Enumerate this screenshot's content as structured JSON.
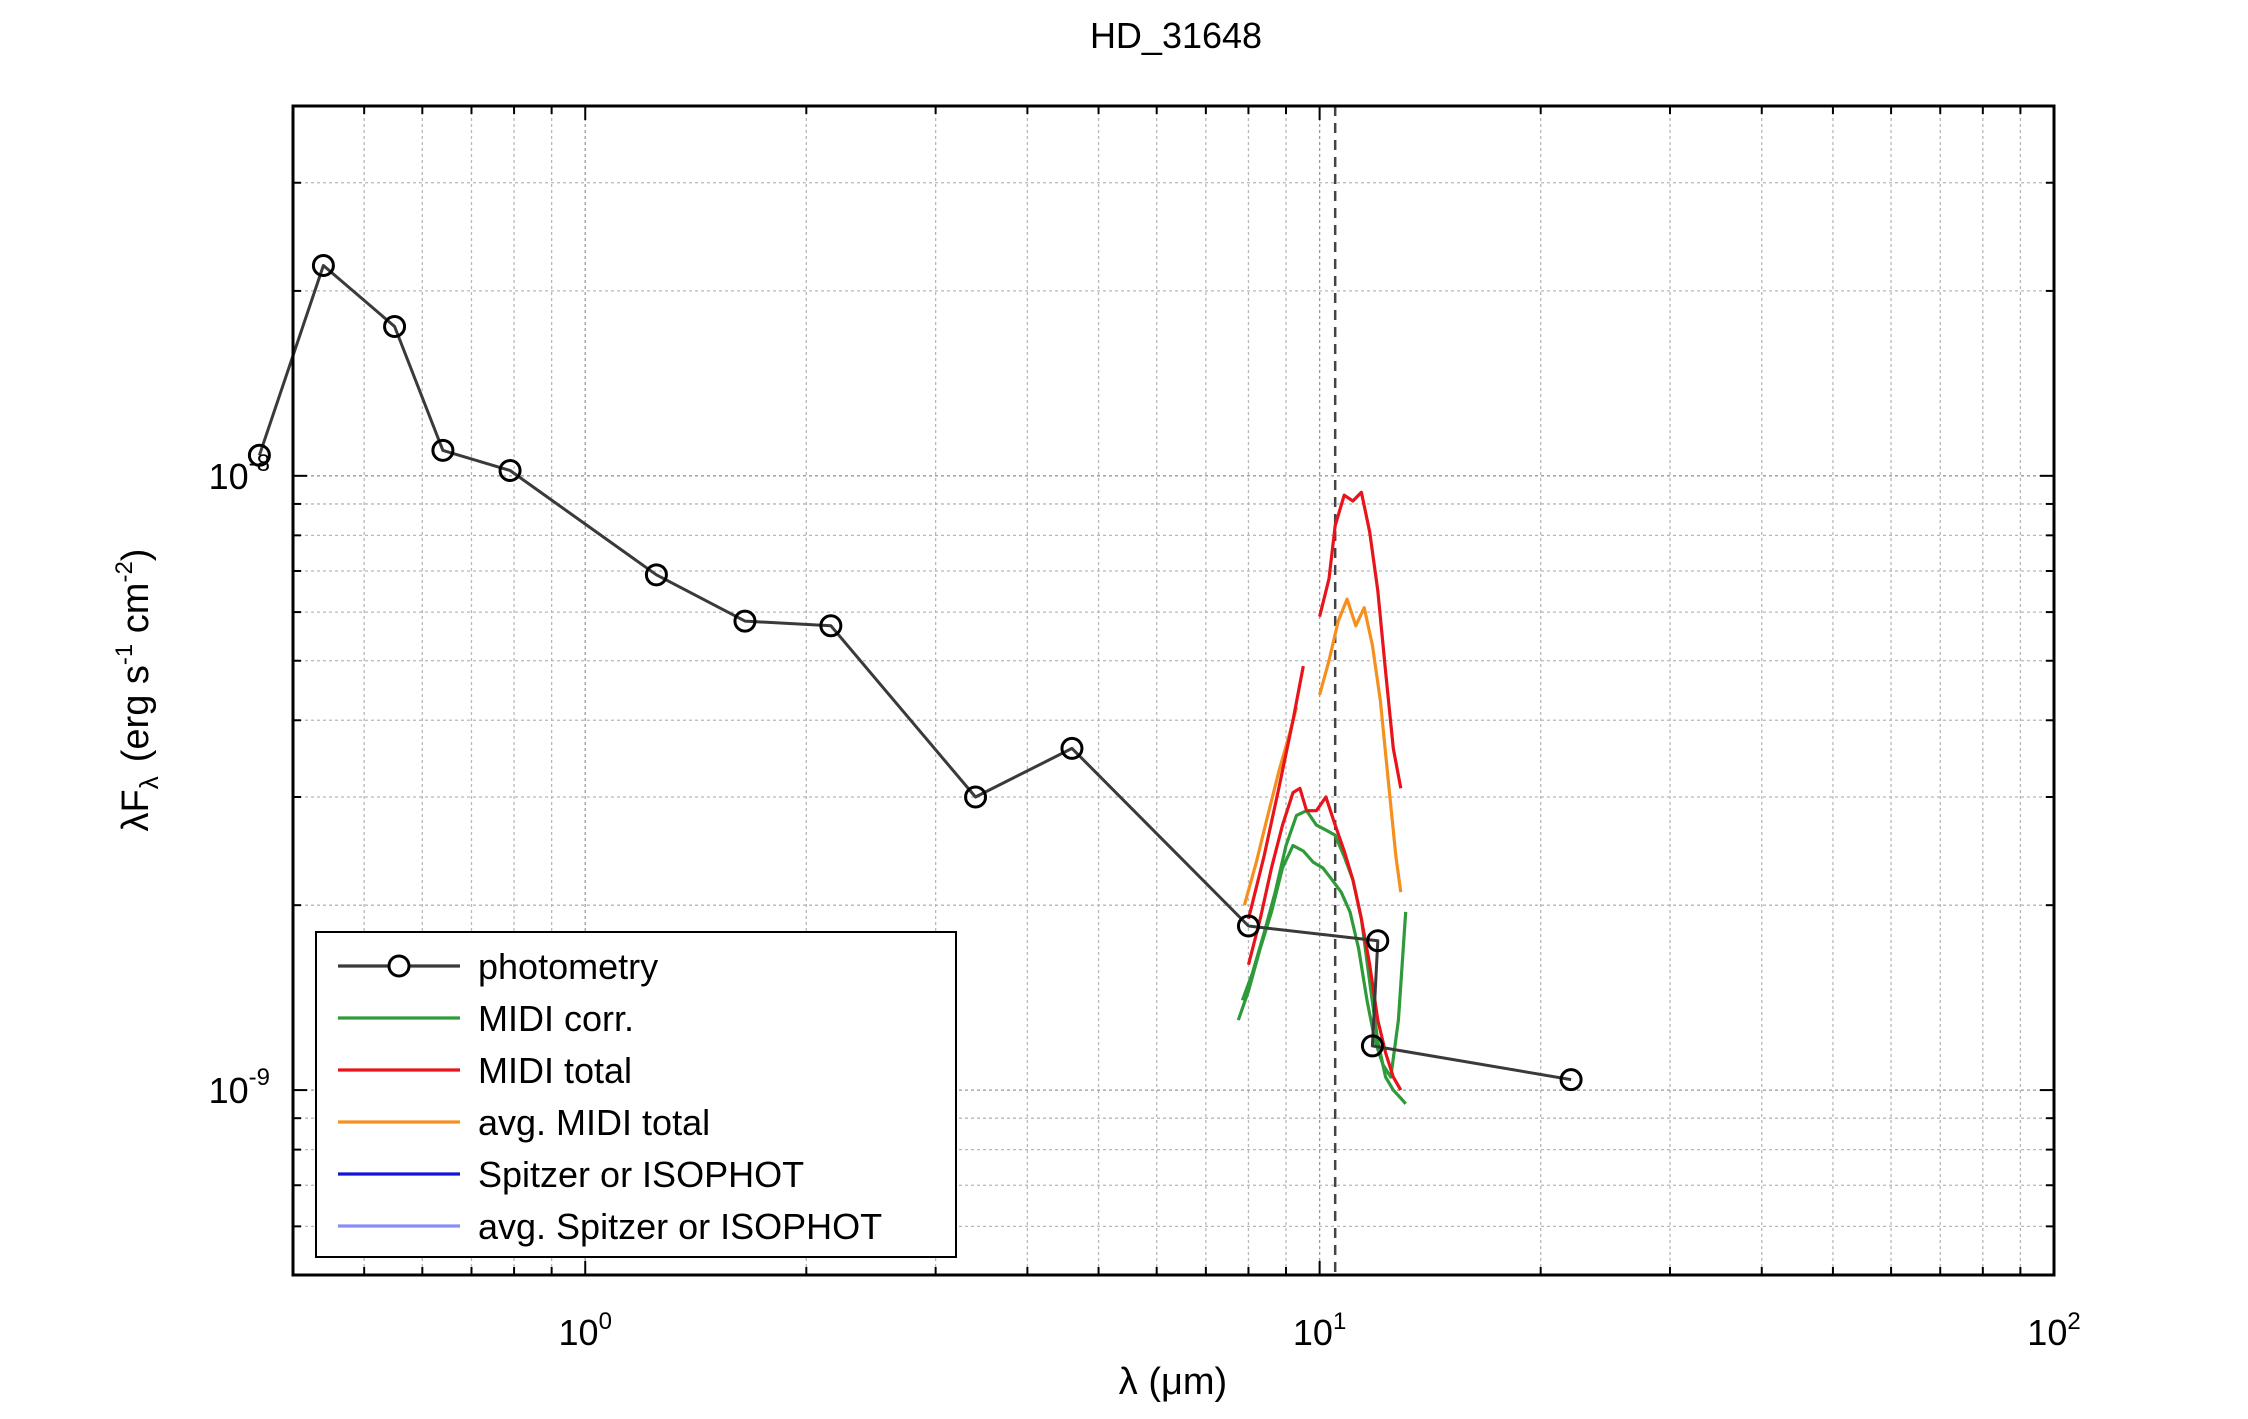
{
  "chart_data": {
    "type": "line",
    "title": "HD_31648",
    "xlabel": {
      "main": "λ (",
      "mu": "μ",
      "rest": "m)"
    },
    "ylabel": {
      "a": "λF",
      "sub": "λ",
      "b": "(erg s",
      "e1": "-1",
      "c": " cm",
      "e2": "-2",
      "d": ")"
    },
    "x_scale": "log",
    "y_scale": "log",
    "xlim": [
      0.4,
      100
    ],
    "ylim": [
      5e-10,
      4e-08
    ],
    "x_ticks": [
      {
        "base": "10",
        "exp": "0",
        "value": 1
      },
      {
        "base": "10",
        "exp": "1",
        "value": 10
      },
      {
        "base": "10",
        "exp": "2",
        "value": 100
      }
    ],
    "y_ticks": [
      {
        "base": "10",
        "exp": "-9",
        "value": 1e-09
      },
      {
        "base": "10",
        "exp": "-8",
        "value": 1e-08
      }
    ],
    "grid": true,
    "vline": {
      "x": 10.5,
      "style": "dashed"
    },
    "legend_position": "bottom-left",
    "colors": {
      "photometry": "#3a3a3a",
      "midi_corr": "#2e9a3a",
      "midi_total": "#e8141c",
      "avg_midi_total": "#f5901e",
      "spitzer": "#1414d8",
      "avg_spitzer": "#8c8cf5"
    },
    "series": [
      {
        "key": "photometry",
        "name": "photometry",
        "marker": "circle",
        "x": [
          0.36,
          0.44,
          0.55,
          0.64,
          0.79,
          1.25,
          1.65,
          2.16,
          3.4,
          4.6,
          8.0,
          12.0,
          11.8,
          22.0
        ],
        "y": [
          1.08e-08,
          2.2e-08,
          1.75e-08,
          1.1e-08,
          1.02e-08,
          6.9e-09,
          5.8e-09,
          5.7e-09,
          3e-09,
          3.6e-09,
          1.85e-09,
          1.75e-09,
          1.18e-09,
          1.04e-09
        ]
      },
      {
        "key": "midi_corr",
        "name": "MIDI corr.",
        "segments": [
          {
            "x": [
              7.85,
              8.1,
              8.4,
              8.7,
              9.0,
              9.3,
              9.6,
              9.9,
              10.2,
              10.5,
              10.8,
              11.1,
              11.4,
              11.7,
              12.0,
              12.3,
              12.6,
              12.9,
              13.1
            ],
            "y": [
              1.4e-09,
              1.55e-09,
              1.8e-09,
              2.1e-09,
              2.5e-09,
              2.8e-09,
              2.85e-09,
              2.7e-09,
              2.65e-09,
              2.6e-09,
              2.4e-09,
              2.2e-09,
              1.9e-09,
              1.5e-09,
              1.2e-09,
              1.05e-09,
              1e-09,
              9.7e-10,
              9.5e-10
            ]
          },
          {
            "x": [
              7.75,
              8.0,
              8.3,
              8.6,
              8.9,
              9.2,
              9.5,
              9.8,
              10.1,
              10.4,
              10.7,
              11.0,
              11.3,
              11.6,
              11.9,
              12.2,
              12.5,
              12.8,
              13.1
            ],
            "y": [
              1.3e-09,
              1.45e-09,
              1.7e-09,
              1.95e-09,
              2.3e-09,
              2.5e-09,
              2.45e-09,
              2.35e-09,
              2.3e-09,
              2.2e-09,
              2.1e-09,
              1.95e-09,
              1.7e-09,
              1.4e-09,
              1.2e-09,
              1.1e-09,
              1.05e-09,
              1.3e-09,
              1.95e-09
            ]
          }
        ]
      },
      {
        "key": "midi_total",
        "name": "MIDI total",
        "segments": [
          {
            "x": [
              8.0,
              8.3,
              8.6,
              8.9,
              9.2,
              9.4,
              9.6,
              9.9,
              10.2,
              10.5,
              10.8,
              11.1,
              11.4,
              11.7,
              12.0,
              12.3,
              12.6,
              12.9
            ],
            "y": [
              1.6e-09,
              1.9e-09,
              2.3e-09,
              2.7e-09,
              3.05e-09,
              3.1e-09,
              2.85e-09,
              2.85e-09,
              3e-09,
              2.7e-09,
              2.45e-09,
              2.2e-09,
              1.9e-09,
              1.6e-09,
              1.3e-09,
              1.15e-09,
              1.05e-09,
              1e-09
            ]
          },
          {
            "x": [
              8.0,
              8.4,
              8.8,
              9.2,
              9.5
            ],
            "y": [
              1.9e-09,
              2.4e-09,
              3.1e-09,
              4e-09,
              4.9e-09
            ]
          },
          {
            "x": [
              10.0,
              10.3,
              10.5,
              10.8,
              11.1,
              11.4,
              11.7,
              12.0,
              12.3,
              12.6,
              12.9
            ],
            "y": [
              5.9e-09,
              6.8e-09,
              8.3e-09,
              9.3e-09,
              9.1e-09,
              9.4e-09,
              8.1e-09,
              6.5e-09,
              4.8e-09,
              3.6e-09,
              3.1e-09
            ]
          }
        ]
      },
      {
        "key": "avg_midi_total",
        "name": "avg. MIDI total",
        "segments": [
          {
            "x": [
              7.9,
              8.2,
              8.5,
              8.8,
              9.1,
              9.3
            ],
            "y": [
              2e-09,
              2.35e-09,
              2.8e-09,
              3.3e-09,
              3.8e-09,
              4.2e-09
            ]
          },
          {
            "x": [
              10.0,
              10.3,
              10.6,
              10.9,
              11.2,
              11.5,
              11.8,
              12.1,
              12.4,
              12.7,
              12.9
            ],
            "y": [
              4.4e-09,
              5e-09,
              5.8e-09,
              6.3e-09,
              5.7e-09,
              6.1e-09,
              5.3e-09,
              4.3e-09,
              3.2e-09,
              2.4e-09,
              2.1e-09
            ]
          }
        ]
      },
      {
        "key": "spitzer",
        "name": "Spitzer or ISOPHOT",
        "x": [],
        "y": []
      },
      {
        "key": "avg_spitzer",
        "name": "avg. Spitzer or ISOPHOT",
        "x": [],
        "y": []
      }
    ]
  }
}
